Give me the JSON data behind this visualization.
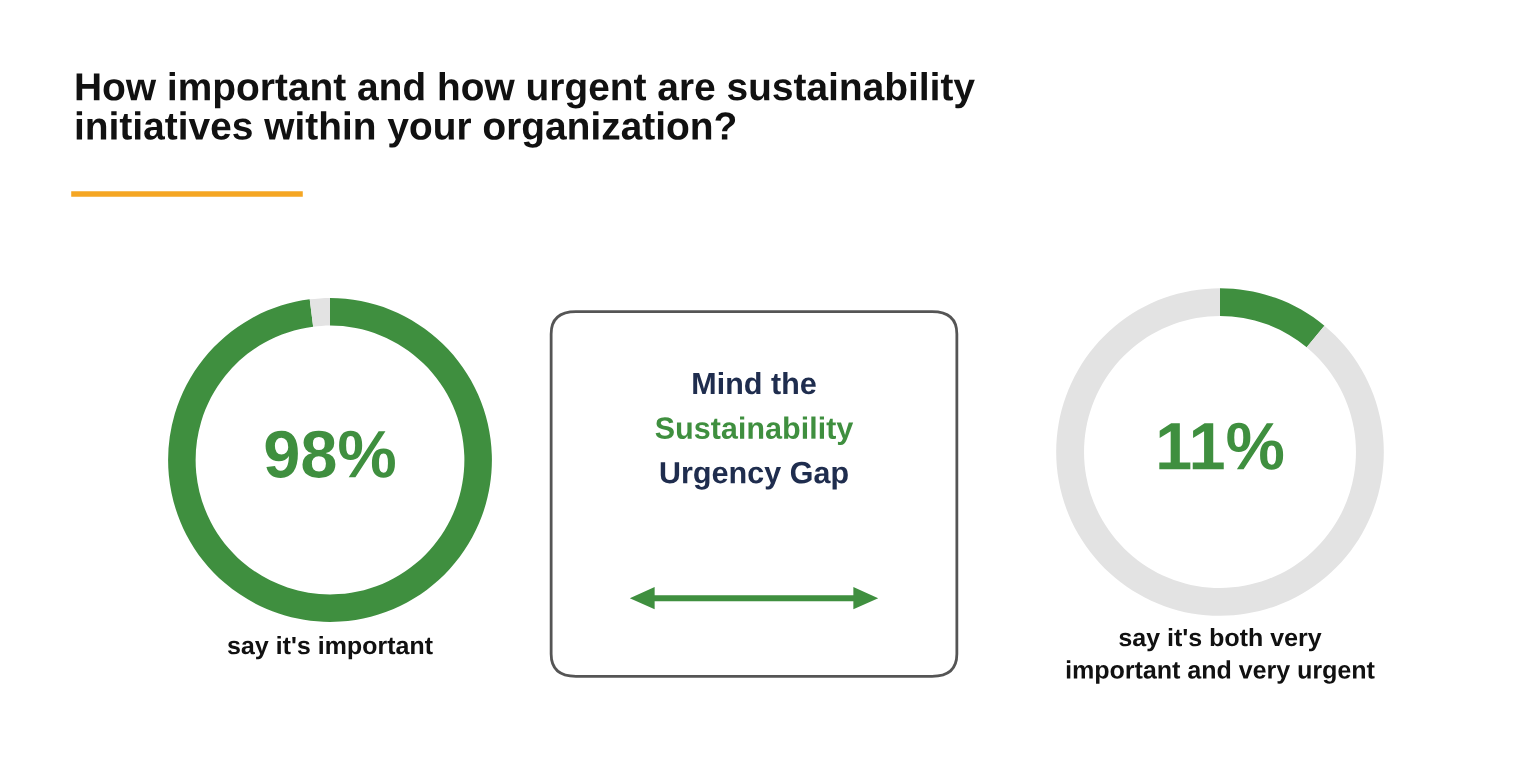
{
  "chart_data": [
    {
      "type": "donut",
      "title": "How important and how urgent are sustainability\ninitiatives within your organization?",
      "categories": [
        null,
        null
      ],
      "values": [
        98,
        2
      ],
      "colors": [
        "#3f8f3f",
        "#e3e3e3"
      ],
      "value_labels": [
        "98%",
        null
      ],
      "annotations": [
        "say it's important"
      ]
    },
    {
      "type": "other",
      "annotations": [
        "Mind the",
        "Sustainability",
        "Urgency Gap"
      ],
      "colors": [
        "#1f2d4e",
        "#3f8f3f",
        "#1f2d4e"
      ]
    },
    {
      "type": "donut",
      "categories": [
        null,
        null
      ],
      "values": [
        11,
        89
      ],
      "colors": [
        "#3f8f3f",
        "#e3e3e3"
      ],
      "value_labels": [
        "11%",
        null
      ],
      "annotations": [
        "say it's both very\nimportant and very urgent"
      ]
    }
  ]
}
